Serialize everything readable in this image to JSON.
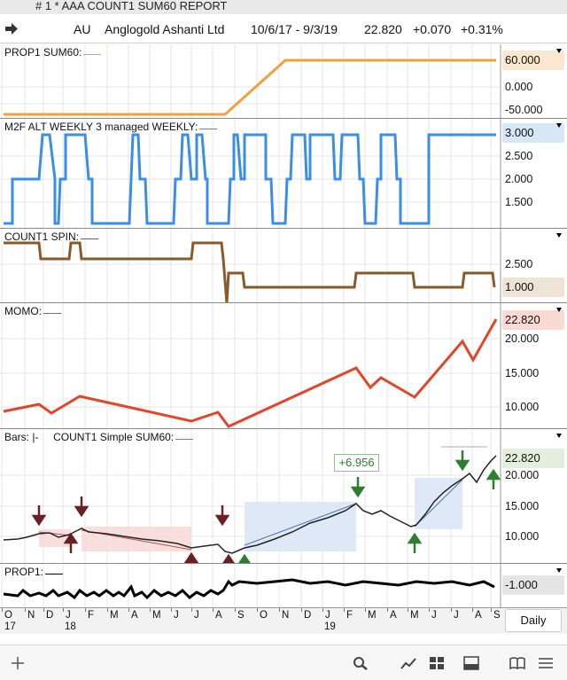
{
  "window": {
    "title": "# 1 *  AAA COUNT1 SUM60 REPORT"
  },
  "header": {
    "symbol": "AU",
    "company": "Anglogold Ashanti Ltd",
    "date_range": "10/6/17 - 9/3/19",
    "last": "22.820",
    "change": "+0.070",
    "change_pct": "+0.31%"
  },
  "panels": {
    "prop1_sum60": {
      "label": "PROP1 SUM60:",
      "color": "#f0a040",
      "current": "60.000",
      "ticks": [
        "0.000",
        "-50.000"
      ]
    },
    "m2f": {
      "label": "M2F ALT WEEKLY 3 managed WEEKLY:",
      "color": "#3a8ee6",
      "current": "3.000",
      "ticks": [
        "2.500",
        "2.000",
        "1.500"
      ]
    },
    "count1_spin": {
      "label": "COUNT1 SPIN:",
      "color": "#8a5a2a",
      "current": "1.000",
      "ticks": [
        "2.500"
      ]
    },
    "momo": {
      "label": "MOMO:",
      "color": "#e2452a",
      "current": "22.820",
      "ticks": [
        "20.000",
        "15.000",
        "10.000"
      ]
    },
    "bars": {
      "label_left": "Bars:",
      "label_right": "COUNT1 Simple SUM60:",
      "current": "22.820",
      "ticks": [
        "20.000",
        "15.000",
        "10.000"
      ],
      "callout": "+6.956"
    },
    "prop1": {
      "label": "PROP1:",
      "current": "-1.000"
    }
  },
  "xaxis": {
    "months": [
      "O",
      "N",
      "D",
      "J",
      "F",
      "M",
      "A",
      "M",
      "J",
      "J",
      "A",
      "S",
      "O",
      "N",
      "D",
      "J",
      "F",
      "M",
      "A",
      "M",
      "J",
      "J",
      "A",
      "S"
    ],
    "years": [
      "17",
      "18",
      "19"
    ],
    "interval": "Daily"
  },
  "toolbar": {
    "icons": [
      "add-icon",
      "search-icon",
      "chart-line-icon",
      "grid-icon",
      "panel-icon",
      "book-icon",
      "menu-icon"
    ]
  }
}
